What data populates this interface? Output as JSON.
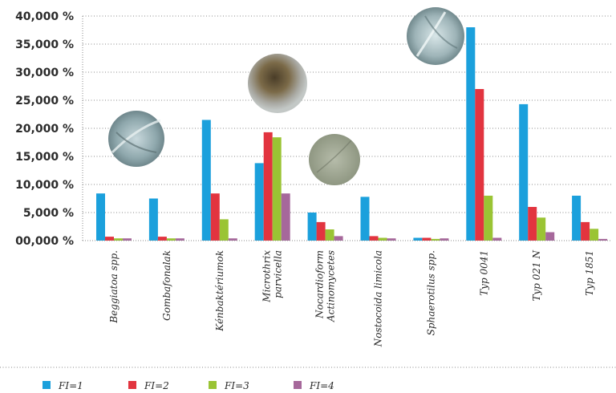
{
  "chart_data": {
    "type": "bar",
    "categories": [
      [
        "Beggiatoa spp."
      ],
      [
        "Gombafonalak"
      ],
      [
        "Kénbaktériumok"
      ],
      [
        "Microthrix",
        "parvicella"
      ],
      [
        "Nocardioform",
        "Actinomycetes"
      ],
      [
        "Nostocoida limicola"
      ],
      [
        "Sphaerotilus spp."
      ],
      [
        "Typ 0041"
      ],
      [
        "Typ 021 N"
      ],
      [
        "Typ 1851"
      ]
    ],
    "series": [
      {
        "name": "FI=1",
        "color": "#1ba0dc",
        "values": [
          8.4,
          7.5,
          21.5,
          13.8,
          5.0,
          7.8,
          0.5,
          38.0,
          24.3,
          8.0
        ]
      },
      {
        "name": "FI=2",
        "color": "#e2343f",
        "values": [
          0.7,
          0.7,
          8.4,
          19.3,
          3.3,
          0.8,
          0.5,
          27.0,
          6.0,
          3.3
        ]
      },
      {
        "name": "FI=3",
        "color": "#9ac434",
        "values": [
          0.4,
          0.4,
          3.8,
          18.4,
          2.0,
          0.5,
          0.3,
          8.0,
          4.1,
          2.1
        ]
      },
      {
        "name": "FI=4",
        "color": "#a6689b",
        "values": [
          0.4,
          0.4,
          0.4,
          8.4,
          0.8,
          0.4,
          0.4,
          0.5,
          1.5,
          0.3
        ]
      }
    ],
    "yticks": [
      "00,000 %",
      "5,000 %",
      "10,000 %",
      "15,000 %",
      "20,000 %",
      "25,000 %",
      "30,000 %",
      "35,000 %",
      "40,000 %"
    ],
    "ylim": [
      0,
      40
    ],
    "ystep": 5,
    "grid": "horizontal dotted",
    "legend_position": "bottom-left"
  }
}
